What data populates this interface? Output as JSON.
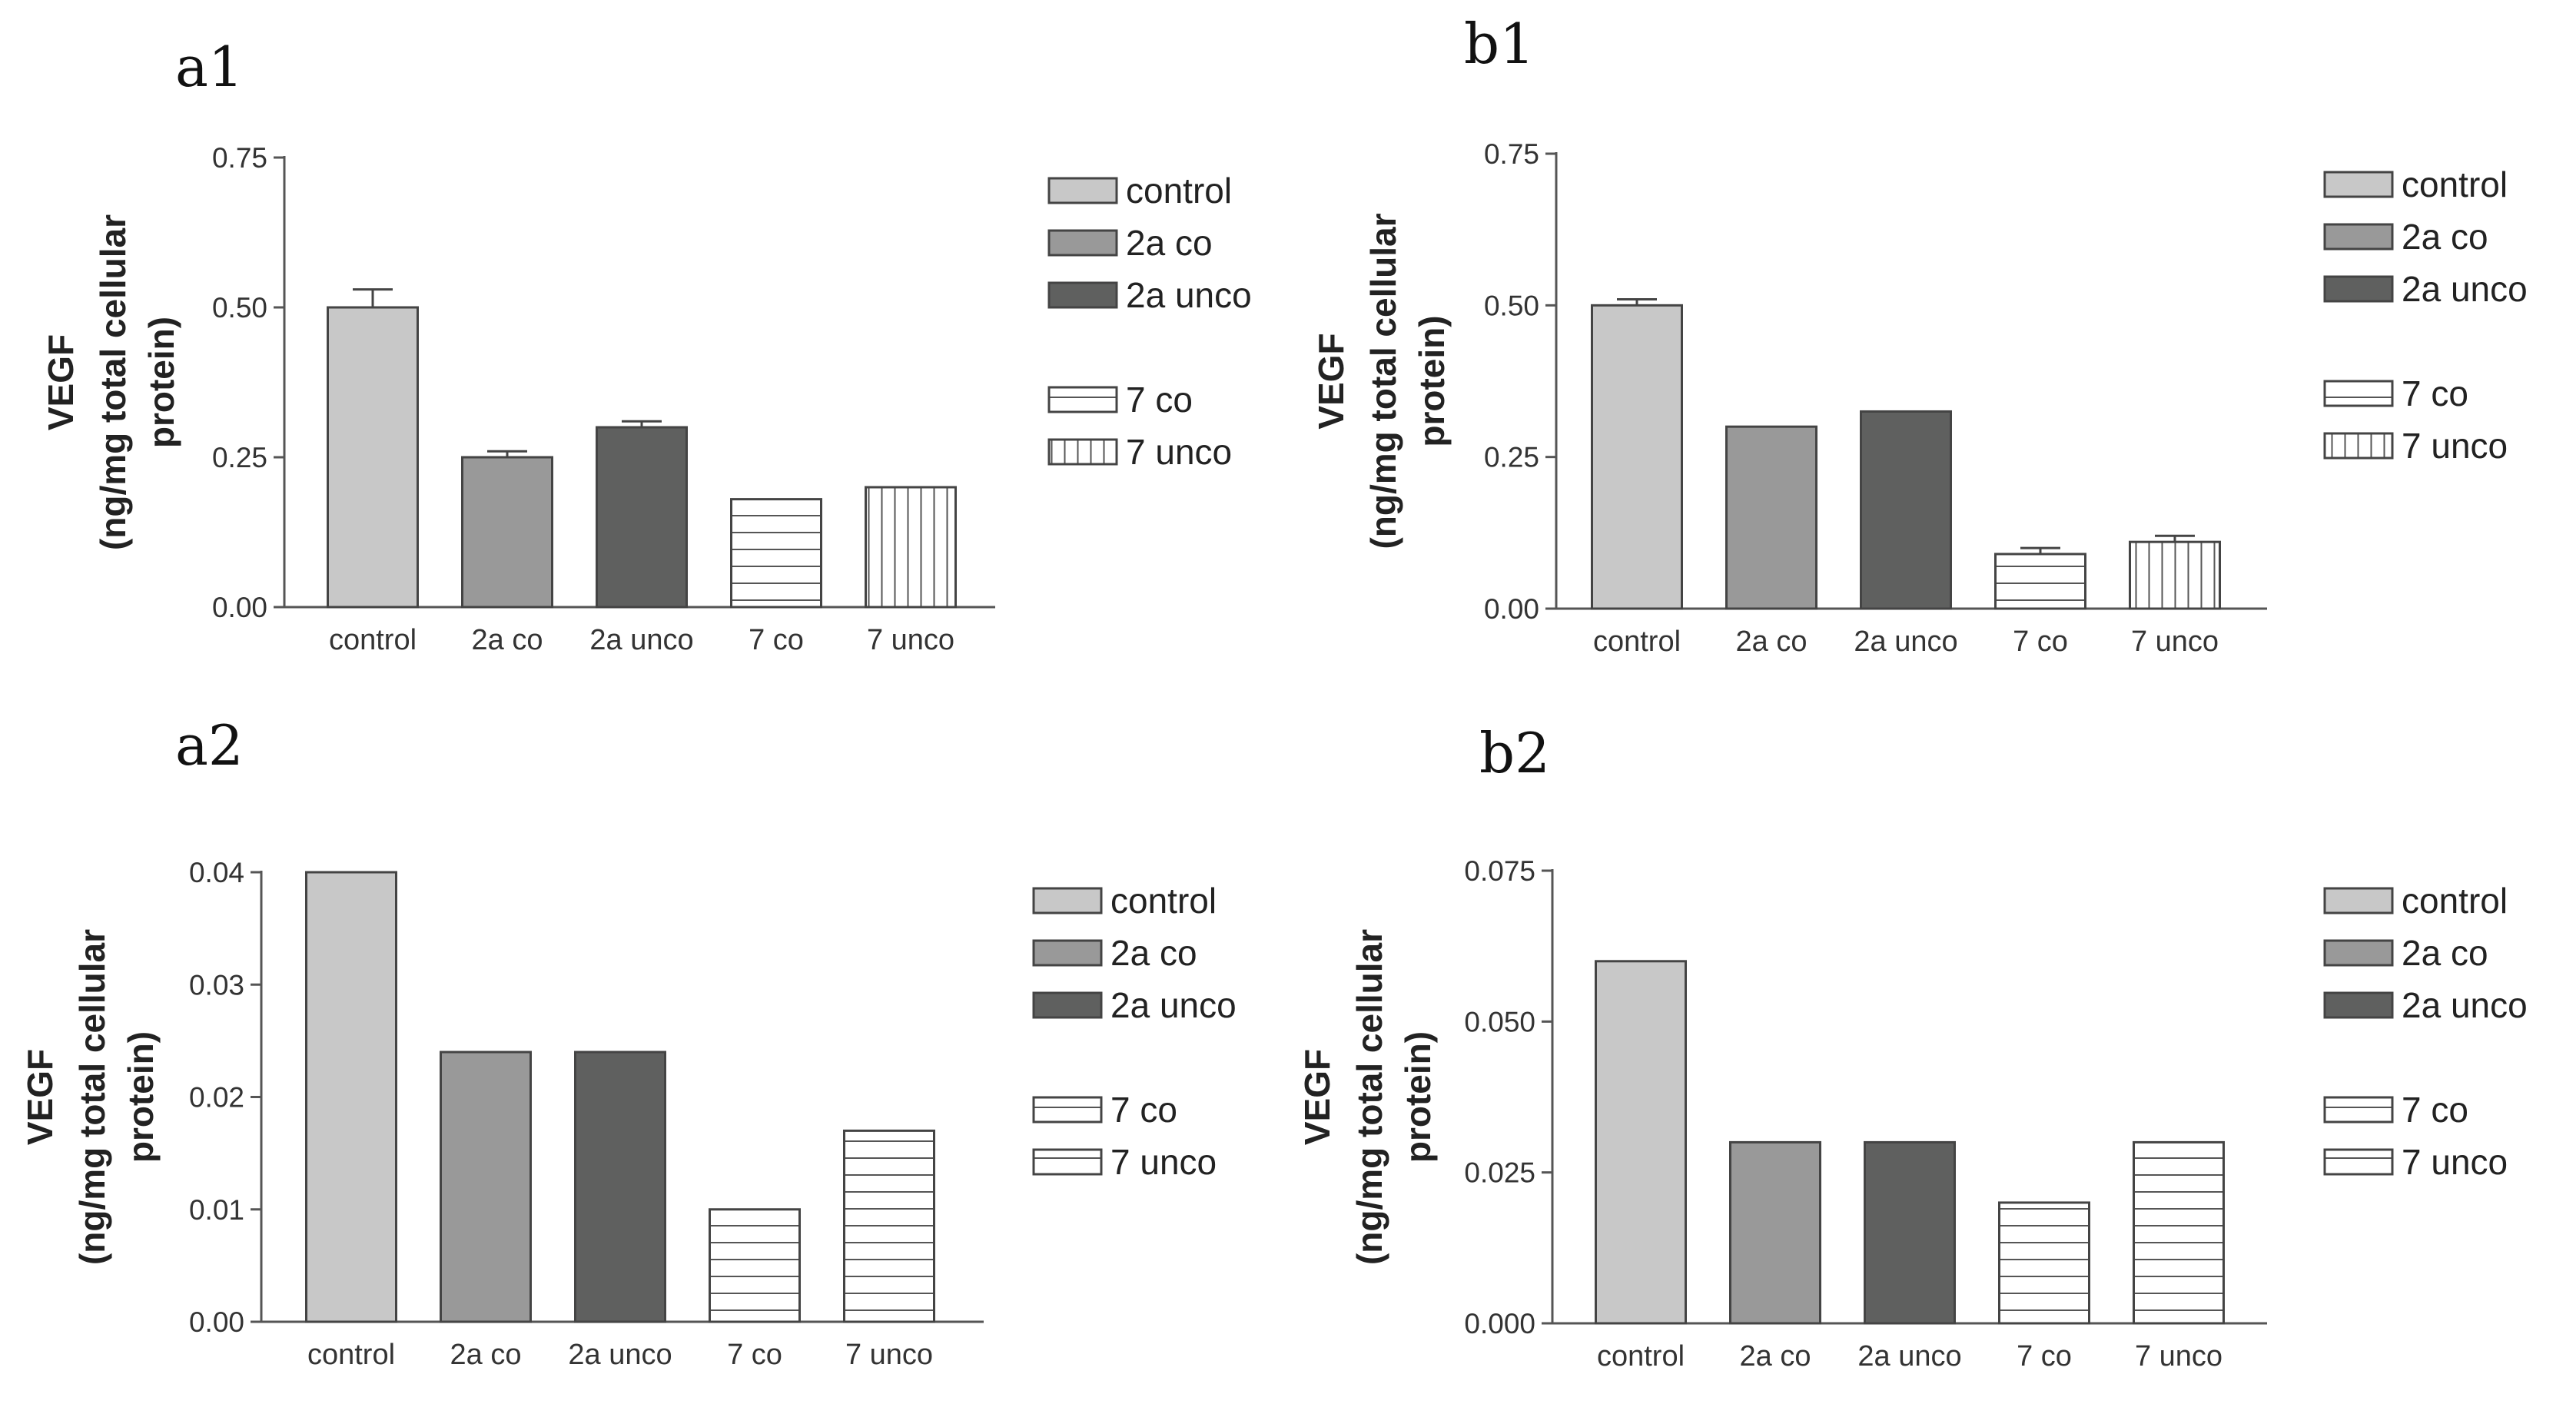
{
  "styles": {
    "control": {
      "fill": "#c8c8c8",
      "pattern": "solid"
    },
    "2a co": {
      "fill": "#999999",
      "pattern": "solid"
    },
    "2a unco": {
      "fill": "#5f605f",
      "pattern": "solid"
    },
    "7 co": {
      "fill": "#ffffff",
      "pattern": "horizontal-lines"
    },
    "7 unco": {
      "fill": "#ffffff",
      "pattern": "vertical-lines"
    },
    "7 unco (a2, b2)": {
      "fill": "#ffffff",
      "pattern": "horizontal-lines"
    }
  },
  "chart_data": [
    {
      "panel": "a1",
      "type": "bar",
      "ylabel_line1": "VEGF",
      "ylabel_line2": "(ng/mg total cellular",
      "ylabel_line3": "protein)",
      "categories": [
        "control",
        "2a co",
        "2a unco",
        "7 co",
        "7 unco"
      ],
      "values": [
        0.5,
        0.25,
        0.3,
        0.18,
        0.2
      ],
      "errors": [
        0.03,
        0.01,
        0.01,
        0,
        0
      ],
      "patterns": [
        "solid",
        "solid",
        "solid",
        "horizontal-lines",
        "vertical-lines"
      ],
      "ylim": [
        0,
        0.75
      ],
      "yticks": [
        "0.00",
        "0.25",
        "0.50",
        "0.75"
      ],
      "legend": [
        "control",
        "2a co",
        "2a unco",
        "7 co",
        "7 unco"
      ]
    },
    {
      "panel": "b1",
      "type": "bar",
      "ylabel_line1": "VEGF",
      "ylabel_line2": "(ng/mg total cellular",
      "ylabel_line3": "protein)",
      "categories": [
        "control",
        "2a co",
        "2a unco",
        "7 co",
        "7 unco"
      ],
      "values": [
        0.5,
        0.3,
        0.325,
        0.09,
        0.11
      ],
      "errors": [
        0.01,
        0,
        0,
        0.01,
        0.01
      ],
      "patterns": [
        "solid",
        "solid",
        "solid",
        "horizontal-lines",
        "vertical-lines"
      ],
      "ylim": [
        0,
        0.75
      ],
      "yticks": [
        "0.00",
        "0.25",
        "0.50",
        "0.75"
      ],
      "legend": [
        "control",
        "2a co",
        "2a unco",
        "7 co",
        "7 unco"
      ]
    },
    {
      "panel": "a2",
      "type": "bar",
      "ylabel_line1": "VEGF",
      "ylabel_line2": "(ng/mg total cellular",
      "ylabel_line3": "protein)",
      "categories": [
        "control",
        "2a co",
        "2a unco",
        "7 co",
        "7 unco"
      ],
      "values": [
        0.04,
        0.024,
        0.024,
        0.01,
        0.017
      ],
      "errors": [
        0,
        0,
        0,
        0,
        0
      ],
      "patterns": [
        "solid",
        "solid",
        "solid",
        "horizontal-lines",
        "horizontal-lines"
      ],
      "ylim": [
        0,
        0.04
      ],
      "yticks": [
        "0.00",
        "0.01",
        "0.02",
        "0.03",
        "0.04"
      ],
      "legend": [
        "control",
        "2a co",
        "2a unco",
        "7 co",
        "7 unco"
      ]
    },
    {
      "panel": "b2",
      "type": "bar",
      "ylabel_line1": "VEGF",
      "ylabel_line2": "(ng/mg total cellular",
      "ylabel_line3": "protein)",
      "categories": [
        "control",
        "2a co",
        "2a unco",
        "7 co",
        "7 unco"
      ],
      "values": [
        0.06,
        0.03,
        0.03,
        0.02,
        0.03
      ],
      "errors": [
        0,
        0,
        0,
        0,
        0
      ],
      "patterns": [
        "solid",
        "solid",
        "solid",
        "horizontal-lines",
        "horizontal-lines"
      ],
      "ylim": [
        0,
        0.075
      ],
      "yticks": [
        "0.000",
        "0.025",
        "0.050",
        "0.075"
      ],
      "legend": [
        "control",
        "2a co",
        "2a unco",
        "7 co",
        "7 unco"
      ]
    }
  ]
}
